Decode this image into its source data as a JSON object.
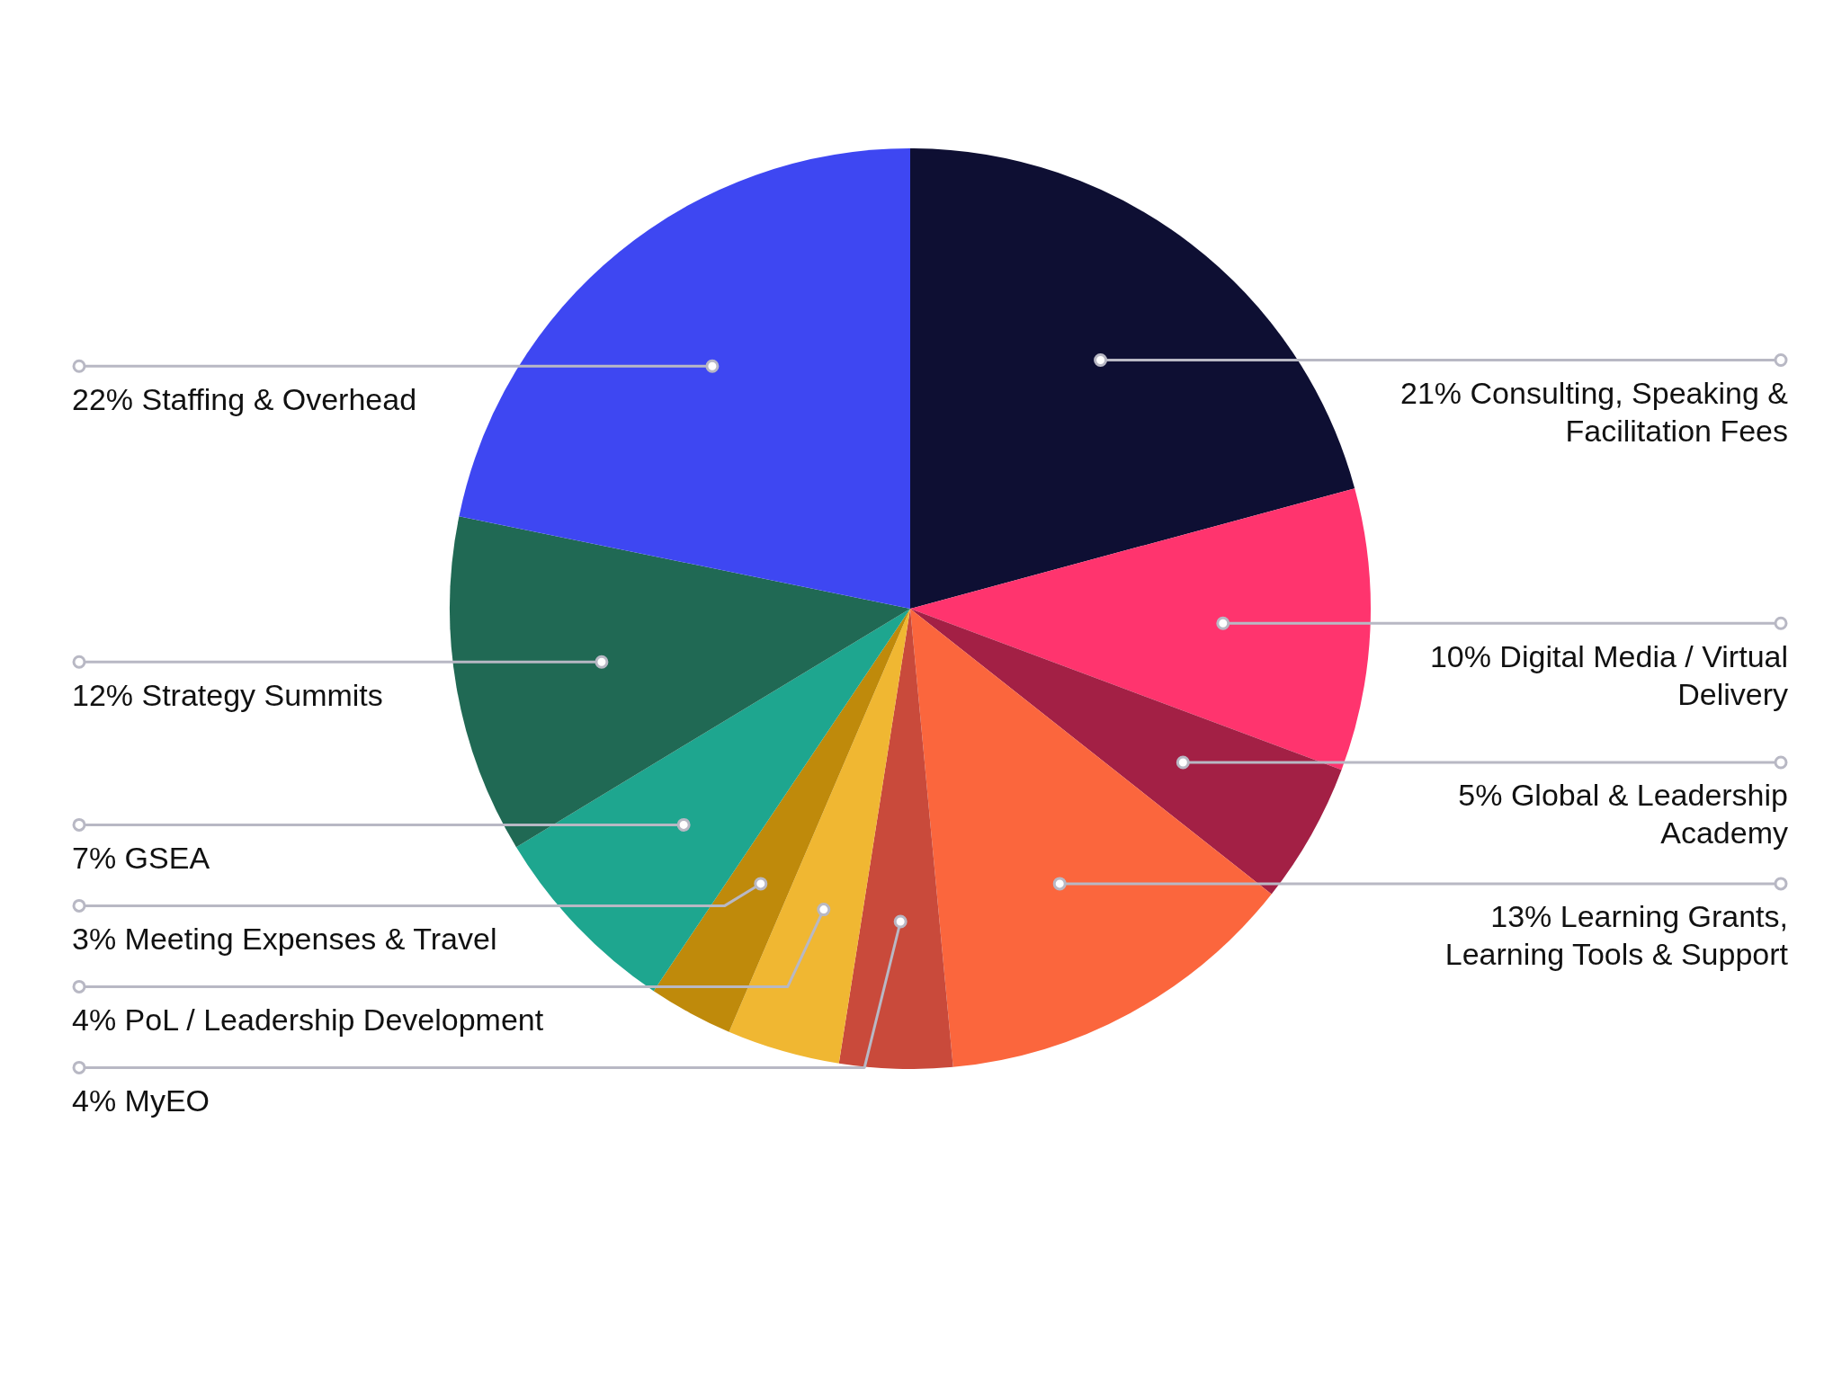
{
  "chart_data": {
    "type": "pie",
    "categories": [
      "Consulting, Speaking & Facilitation Fees",
      "Digital Media / Virtual Delivery",
      "Global & Leadership Academy",
      "Learning Grants, Learning Tools & Support",
      "MyEO",
      "PoL / Leadership Development",
      "Meeting Expenses & Travel",
      "GSEA",
      "Strategy Summits",
      "Staffing & Overhead"
    ],
    "values": [
      21,
      10,
      5,
      13,
      4,
      4,
      3,
      7,
      12,
      22
    ],
    "colors": [
      "#0e0f33",
      "#ff346e",
      "#a32045",
      "#fb663d",
      "#c94a3b",
      "#f0b732",
      "#bf8a0b",
      "#1ea68f",
      "#206954",
      "#3e47f2"
    ],
    "value_labels": [
      "21%",
      "10%",
      "5%",
      "13%",
      "4%",
      "4%",
      "3%",
      "7%",
      "12%",
      "22%"
    ],
    "legend": false
  }
}
